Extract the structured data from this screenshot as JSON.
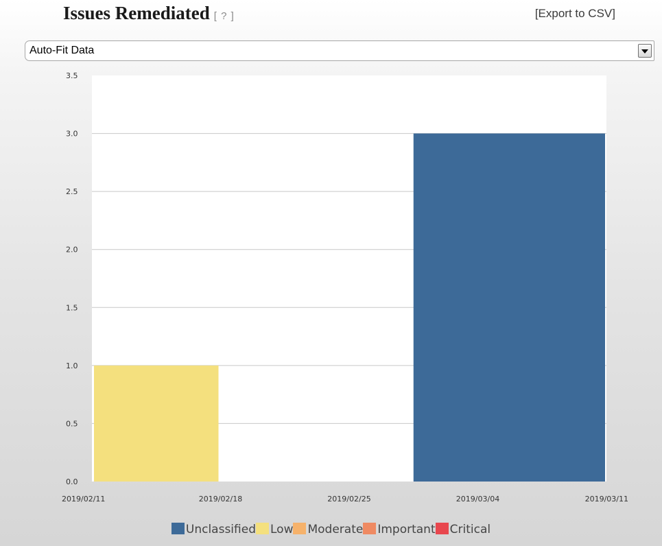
{
  "header": {
    "title": "Issues Remediated",
    "help_label": "[ ? ]",
    "export_label": "[Export to CSV]"
  },
  "range_select": {
    "value": "Auto-Fit Data"
  },
  "chart_data": {
    "type": "bar",
    "stacked": true,
    "title": "Issues Remediated",
    "xlabel": "",
    "ylabel": "",
    "ylim": [
      0,
      3.5
    ],
    "yticks": [
      "0.0",
      "0.5",
      "1.0",
      "1.5",
      "2.0",
      "2.5",
      "3.0",
      "3.5"
    ],
    "xticks": [
      "2019/02/11",
      "2019/02/18",
      "2019/02/25",
      "2019/03/04",
      "2019/03/11"
    ],
    "categories": [
      "2019/02/11",
      "2019/03/04"
    ],
    "series": [
      {
        "name": "Unclassified",
        "color": "#3d6a98",
        "values": [
          0,
          3
        ]
      },
      {
        "name": "Low",
        "color": "#f4e07e",
        "values": [
          1,
          0
        ]
      },
      {
        "name": "Moderate",
        "color": "#f6b26b",
        "values": [
          0,
          0
        ]
      },
      {
        "name": "Important",
        "color": "#ef8a62",
        "values": [
          0,
          0
        ]
      },
      {
        "name": "Critical",
        "color": "#e8474e",
        "values": [
          0,
          0
        ]
      }
    ],
    "grid": true,
    "legend_position": "bottom"
  }
}
